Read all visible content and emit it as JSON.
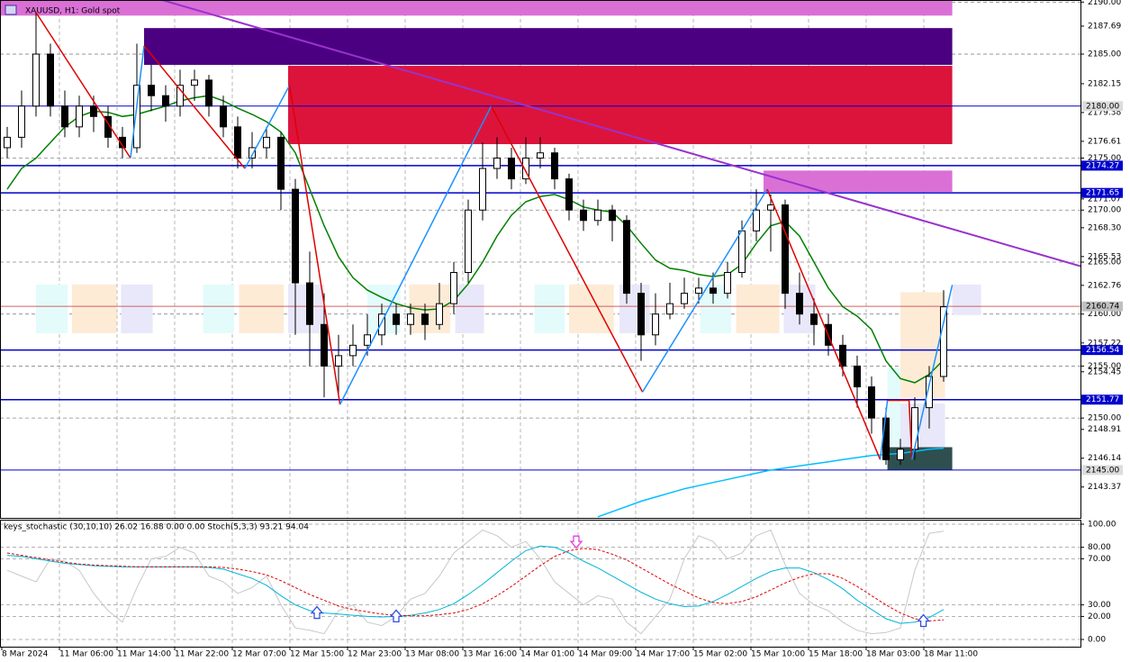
{
  "chart_data": [
    {
      "type": "candlestick",
      "title": "XAUUSD, H1:  Gold spot",
      "x_labels": [
        "8 Mar 2024",
        "11 Mar 06:00",
        "11 Mar 14:00",
        "11 Mar 22:00",
        "12 Mar 07:00",
        "12 Mar 15:00",
        "12 Mar 23:00",
        "13 Mar 08:00",
        "13 Mar 16:00",
        "14 Mar 01:00",
        "14 Mar 09:00",
        "14 Mar 17:00",
        "15 Mar 02:00",
        "15 Mar 10:00",
        "15 Mar 18:00",
        "18 Mar 03:00",
        "18 Mar 11:00"
      ],
      "open": [
        2176,
        2177,
        2180,
        2185,
        2180,
        2178,
        2180,
        2179,
        2177,
        2176,
        2182,
        2181,
        2180,
        2182,
        2182.5,
        2180,
        2178,
        2175,
        2176,
        2177,
        2172,
        2163,
        2159,
        2155,
        2156,
        2157,
        2158,
        2160,
        2159,
        2160,
        2159,
        2161,
        2164,
        2170,
        2174,
        2175,
        2173,
        2175,
        2175.5,
        2173,
        2170,
        2169,
        2170,
        2169,
        2162,
        2158,
        2160,
        2161,
        2162,
        2162.5,
        2162,
        2164,
        2168,
        2170,
        2170.5,
        2162,
        2160,
        2159,
        2157,
        2155,
        2153,
        2150,
        2146,
        2147,
        2151,
        2154
      ],
      "high": [
        2178,
        2181.5,
        2189,
        2186,
        2181.5,
        2181,
        2181,
        2180,
        2178,
        2186,
        2184,
        2182,
        2183.5,
        2183.5,
        2183,
        2181,
        2179,
        2177.5,
        2178,
        2177.5,
        2173,
        2166,
        2162,
        2158,
        2159,
        2160,
        2161,
        2161,
        2161,
        2161,
        2163,
        2165,
        2171,
        2176.5,
        2177,
        2176,
        2177,
        2177,
        2176,
        2173.5,
        2171,
        2171,
        2170.5,
        2169.5,
        2163,
        2162,
        2163,
        2163.5,
        2163.5,
        2164,
        2165,
        2169,
        2172,
        2171.5,
        2171,
        2164,
        2161.5,
        2160,
        2158,
        2156,
        2154,
        2151,
        2148,
        2152,
        2155,
        2162.3
      ],
      "low": [
        2175,
        2176,
        2179,
        2179,
        2177,
        2177,
        2177.5,
        2176,
        2175,
        2175.5,
        2179.5,
        2178.5,
        2179,
        2180.5,
        2179,
        2177,
        2174,
        2174,
        2175,
        2170,
        2158,
        2155,
        2152,
        2152,
        2155,
        2156,
        2157,
        2158,
        2158,
        2157.5,
        2158.5,
        2160,
        2163,
        2169,
        2173,
        2172,
        2172.5,
        2174,
        2172,
        2169,
        2168,
        2168.5,
        2167,
        2161,
        2155.5,
        2157,
        2159.5,
        2160.5,
        2161,
        2161,
        2161.5,
        2163.5,
        2167,
        2166,
        2160.5,
        2159,
        2157,
        2156,
        2154,
        2151,
        2148.5,
        2145.5,
        2145.5,
        2146,
        2149,
        2153.5
      ],
      "close": [
        2177,
        2180,
        2185,
        2180,
        2178,
        2180,
        2179,
        2177,
        2176,
        2182,
        2181,
        2180,
        2182,
        2182.5,
        2180,
        2178,
        2175,
        2176,
        2177,
        2172,
        2163,
        2159,
        2155,
        2156,
        2157,
        2158,
        2160,
        2159,
        2160,
        2159,
        2161,
        2164,
        2170,
        2174,
        2175,
        2173,
        2175,
        2175.5,
        2173,
        2170,
        2169,
        2170,
        2169,
        2162,
        2158,
        2160,
        2161,
        2162,
        2162.5,
        2162,
        2164,
        2168,
        2170,
        2170.5,
        2162,
        2160,
        2159,
        2157,
        2155,
        2153,
        2150,
        2146,
        2147,
        2151,
        2154,
        2160.7
      ],
      "up_color": "#ffffff",
      "down_color": "#000000",
      "ylim": [
        2140.4,
        2190.2
      ],
      "yticks": [
        {
          "value": 2190,
          "label": "2190.00"
        },
        {
          "value": 2187.69,
          "label": "2187.69"
        },
        {
          "value": 2185,
          "label": "2185.00"
        },
        {
          "value": 2182.15,
          "label": "2182.15"
        },
        {
          "value": 2179.38,
          "label": "2179.38"
        },
        {
          "value": 2176.61,
          "label": "2176.61"
        },
        {
          "value": 2175,
          "label": "2175.00"
        },
        {
          "value": 2171.07,
          "label": "2171.07"
        },
        {
          "value": 2170,
          "label": "2170.00"
        },
        {
          "value": 2168.3,
          "label": "2168.30"
        },
        {
          "value": 2165.53,
          "label": "2165.53"
        },
        {
          "value": 2165,
          "label": "2165.00"
        },
        {
          "value": 2162.76,
          "label": "2162.76"
        },
        {
          "value": 2160,
          "label": "2160.00"
        },
        {
          "value": 2157.22,
          "label": "2157.22"
        },
        {
          "value": 2155,
          "label": "2155.00"
        },
        {
          "value": 2154.45,
          "label": "2154.45"
        },
        {
          "value": 2150,
          "label": "2150.00"
        },
        {
          "value": 2148.91,
          "label": "2148.91"
        },
        {
          "value": 2146.14,
          "label": "2146.14"
        },
        {
          "value": 2143.37,
          "label": "2143.37"
        }
      ],
      "levels": [
        {
          "value": 2180,
          "label": "2180.00",
          "color": "#0000cd",
          "box": "#dcdcdc"
        },
        {
          "value": 2174.27,
          "label": "2174.27",
          "color": "#0000cd",
          "box": "#0000cd"
        },
        {
          "value": 2171.65,
          "label": "2171.65",
          "color": "#0000cd",
          "box": "#0000cd"
        },
        {
          "value": 2160.74,
          "label": "2160.74",
          "color": "#d06060",
          "box": "#c0c0c0"
        },
        {
          "value": 2156.54,
          "label": "2156.54",
          "color": "#0000cd",
          "box": "#0000cd"
        },
        {
          "value": 2151.77,
          "label": "2151.77",
          "color": "#0000cd",
          "box": "#0000cd"
        },
        {
          "value": 2145,
          "label": "2145.00",
          "color": "#0000cd",
          "box": "#dcdcdc"
        }
      ],
      "zones": [
        {
          "x": [
            -0.5,
            65.6
          ],
          "y": [
            2188.7,
            2190.2
          ],
          "color": "#da70d6"
        },
        {
          "x": [
            9.5,
            65.6
          ],
          "y": [
            2183.96,
            2187.5
          ],
          "color": "#4b0082"
        },
        {
          "x": [
            19.5,
            65.6
          ],
          "y": [
            2176.34,
            2183.87
          ],
          "color": "#dc143c"
        },
        {
          "x": [
            52.5,
            65.6
          ],
          "y": [
            2171.75,
            2173.8
          ],
          "color": "#da70d6"
        },
        {
          "x": [
            61.1,
            65.6
          ],
          "y": [
            2145,
            2147.2
          ],
          "color": "#2f4f4f"
        },
        {
          "x": [
            2,
            4.2
          ],
          "y": [
            2158.16,
            2162.84
          ],
          "color": "#e3fbfb"
        },
        {
          "x": [
            4.5,
            7.6
          ],
          "y": [
            2158.16,
            2162.84
          ],
          "color": "#fdebd6"
        },
        {
          "x": [
            7.9,
            10.1
          ],
          "y": [
            2158.16,
            2162.84
          ],
          "color": "#e8e8fa"
        },
        {
          "x": [
            13.6,
            15.75
          ],
          "y": [
            2158.16,
            2162.84
          ],
          "color": "#e3fbfb"
        },
        {
          "x": [
            16.1,
            19.2
          ],
          "y": [
            2158.16,
            2162.84
          ],
          "color": "#fdebd6"
        },
        {
          "x": [
            19.5,
            22
          ],
          "y": [
            2158.16,
            2162.84
          ],
          "color": "#e8e8fa"
        },
        {
          "x": [
            25,
            27.3
          ],
          "y": [
            2158.16,
            2162.84
          ],
          "color": "#e3fbfb"
        },
        {
          "x": [
            27.9,
            30.75
          ],
          "y": [
            2158.16,
            2162.84
          ],
          "color": "#fdebd6"
        },
        {
          "x": [
            31.1,
            33.1
          ],
          "y": [
            2158.16,
            2162.84
          ],
          "color": "#e8e8fa"
        },
        {
          "x": [
            36.6,
            38.7
          ],
          "y": [
            2158.16,
            2162.84
          ],
          "color": "#e3fbfb"
        },
        {
          "x": [
            39,
            42.1
          ],
          "y": [
            2158.16,
            2162.84
          ],
          "color": "#fdebd6"
        },
        {
          "x": [
            42.5,
            44.6
          ],
          "y": [
            2158.16,
            2162.84
          ],
          "color": "#e8e8fa"
        },
        {
          "x": [
            48.1,
            50.25
          ],
          "y": [
            2158.16,
            2162.84
          ],
          "color": "#e3fbfb"
        },
        {
          "x": [
            50.6,
            53.6
          ],
          "y": [
            2158.16,
            2162.84
          ],
          "color": "#fdebd6"
        },
        {
          "x": [
            53.9,
            56.1
          ],
          "y": [
            2158.16,
            2162.84
          ],
          "color": "#e8e8fa"
        },
        {
          "x": [
            61.1,
            62
          ],
          "y": [
            2147.3,
            2154.8
          ],
          "color": "#e3fbfb"
        },
        {
          "x": [
            62,
            65.1
          ],
          "y": [
            2151.9,
            2162.1
          ],
          "color": "#fdebd6"
        },
        {
          "x": [
            62,
            65.1
          ],
          "y": [
            2147.2,
            2151.4
          ],
          "color": "#e8e8fa"
        },
        {
          "x": [
            65.6,
            67.6
          ],
          "y": [
            2159.9,
            2162.84
          ],
          "color": "#e8e8fa"
        }
      ],
      "moving_averages": [
        {
          "color": "#008000",
          "values": [
            2172,
            2174,
            2175,
            2176.5,
            2178,
            2179,
            2179.5,
            2179.4,
            2179,
            2179.2,
            2179.6,
            2180,
            2180.5,
            2180.8,
            2181,
            2180.5,
            2179.8,
            2179.2,
            2178.5,
            2177.5,
            2175.5,
            2172,
            2168.5,
            2165.5,
            2163.5,
            2162.3,
            2161.6,
            2161,
            2160.6,
            2160.4,
            2160.5,
            2161.3,
            2162.9,
            2165,
            2167.5,
            2169.5,
            2170.8,
            2171.3,
            2171.5,
            2171,
            2170.3,
            2170,
            2169.8,
            2168.5,
            2166.8,
            2165.2,
            2164.4,
            2164.2,
            2163.8,
            2163.6,
            2163.8,
            2164.8,
            2166.8,
            2168.5,
            2168.9,
            2167.5,
            2165,
            2162.5,
            2160.7,
            2159.8,
            2158.5,
            2155.5,
            2153.8,
            2153.4,
            2154.2,
            2155.6
          ]
        },
        {
          "color": "#00bfff",
          "values": [
            null,
            null,
            null,
            null,
            null,
            null,
            null,
            null,
            null,
            null,
            null,
            null,
            null,
            null,
            null,
            null,
            null,
            null,
            null,
            null,
            null,
            null,
            null,
            null,
            null,
            null,
            null,
            null,
            null,
            null,
            null,
            null,
            null,
            null,
            null,
            null,
            null,
            null,
            null,
            null,
            null,
            2140.5,
            2141,
            2141.5,
            2142,
            2142.4,
            2142.8,
            2143.2,
            2143.5,
            2143.8,
            2144.1,
            2144.4,
            2144.7,
            2145,
            2145.2,
            2145.4,
            2145.6,
            2145.8,
            2146,
            2146.2,
            2146.4,
            2146.5,
            2146.6,
            2146.8,
            2147,
            2147.1
          ]
        }
      ],
      "zigzag": {
        "x": [
          2,
          8.56,
          9.5,
          16.5,
          19.6,
          23.1,
          33.6,
          44.1,
          52.75,
          60.6,
          61.1,
          62.6,
          62.8,
          65.6
        ],
        "values": [
          2189,
          2175,
          2185.8,
          2174,
          2182,
          2151.3,
          2180,
          2152.5,
          2172,
          2146,
          2151.7,
          2151.7,
          2146,
          2162.8
        ],
        "up_color": "#1e90ff",
        "down_color": "#e00000"
      },
      "trendline": {
        "x": [
          10.75,
          74.5
        ],
        "values": [
          2190.2,
          2164.6
        ],
        "color": "#9932cc"
      }
    },
    {
      "type": "stochastic",
      "title": "keys_stochastic (30,10,10) 26.02 16.88 0.00 0.00 Stoch(5,3,3) 93.21 94.04",
      "ylim": [
        -6.25,
        103.9
      ],
      "yticks": [
        {
          "value": 100,
          "label": "100.00"
        },
        {
          "value": 80,
          "label": "80.00"
        },
        {
          "value": 70,
          "label": "70.00"
        },
        {
          "value": 30,
          "label": "30.00"
        },
        {
          "value": 20,
          "label": "20.00"
        },
        {
          "value": 0,
          "label": "0.00"
        }
      ],
      "series": [
        {
          "color": "#c8c8c8",
          "dashed": false,
          "values": [
            60,
            55,
            50,
            70,
            68,
            60,
            40,
            25,
            15,
            45,
            70,
            72,
            80,
            75,
            55,
            50,
            40,
            45,
            55,
            30,
            10,
            8,
            5,
            25,
            30,
            15,
            12,
            20,
            35,
            40,
            55,
            75,
            85,
            95,
            90,
            80,
            85,
            70,
            50,
            40,
            30,
            38,
            35,
            15,
            5,
            20,
            35,
            70,
            90,
            85,
            70,
            75,
            90,
            95,
            65,
            40,
            30,
            25,
            15,
            8,
            5,
            6,
            10,
            60,
            92,
            94
          ]
        },
        {
          "color": "#00b4d8",
          "dashed": false,
          "values": [
            73,
            72,
            70,
            68,
            66,
            65,
            64,
            63.5,
            63,
            63,
            63,
            63,
            63,
            63,
            62.5,
            61,
            57,
            53,
            47,
            38,
            30,
            25,
            23,
            22,
            21,
            20,
            19.5,
            20,
            21,
            23,
            26,
            31,
            39,
            48,
            58,
            68,
            77,
            81,
            80,
            75,
            68,
            62,
            55,
            48,
            41,
            35,
            31,
            28.5,
            29,
            33,
            39,
            46,
            53,
            59,
            62,
            62,
            58,
            52,
            44,
            34,
            26,
            18,
            14,
            15,
            19,
            26
          ]
        },
        {
          "color": "#e00000",
          "dashed": true,
          "values": [
            75,
            73,
            71,
            69,
            67,
            65.5,
            64.5,
            64,
            63.5,
            63,
            63,
            63,
            63,
            63,
            63,
            62.5,
            61,
            59,
            56,
            51,
            45,
            39,
            34,
            29,
            26,
            24,
            22,
            21,
            20.5,
            20.5,
            21.5,
            23,
            26,
            31,
            38,
            46,
            55,
            64,
            72,
            77,
            79,
            78,
            74,
            69,
            62,
            55,
            48,
            42,
            36,
            32,
            31,
            33,
            37,
            43,
            49,
            54,
            57,
            57,
            53,
            46,
            38,
            30,
            23,
            18,
            16,
            17
          ]
        }
      ],
      "signals": [
        {
          "x": 21.5,
          "value": 23,
          "direction": "up",
          "color": "#3050e0"
        },
        {
          "x": 27,
          "value": 20,
          "direction": "up",
          "color": "#3050e0"
        },
        {
          "x": 39.5,
          "value": 85,
          "direction": "down",
          "color": "#e040e0"
        },
        {
          "x": 63.6,
          "value": 16,
          "direction": "up",
          "color": "#3050e0"
        }
      ]
    }
  ]
}
